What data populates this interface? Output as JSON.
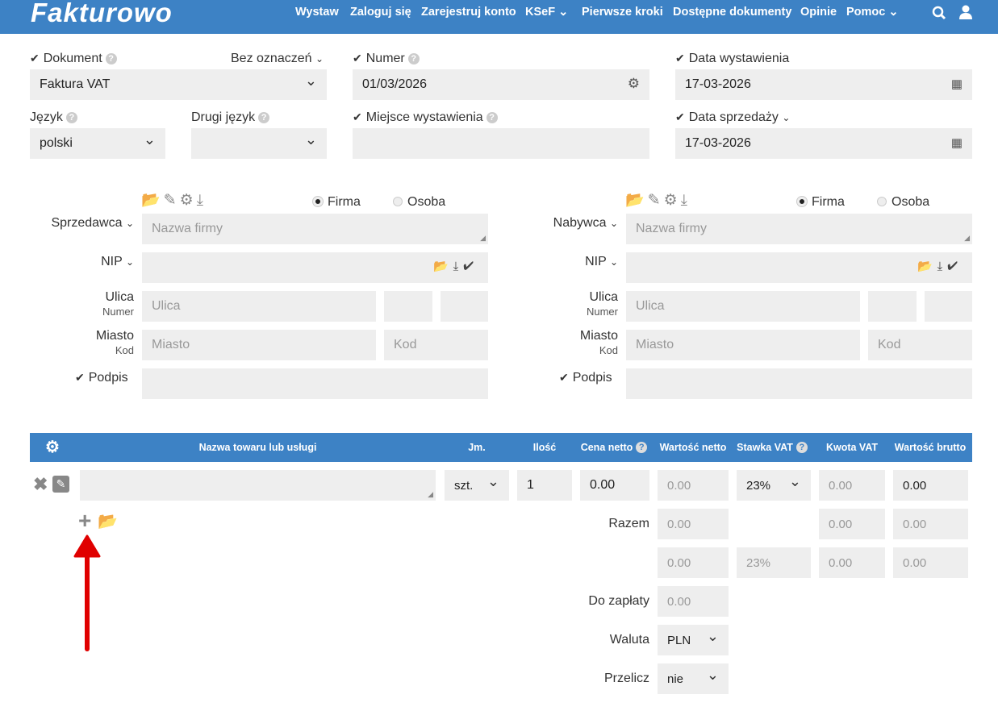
{
  "header": {
    "logo": "Fakturowo",
    "nav": [
      "Wystaw",
      "Zaloguj się",
      "Zarejestruj konto",
      "KSeF",
      "Pierwsze kroki",
      "Dostępne dokumenty",
      "Opinie",
      "Pomoc"
    ],
    "brand_color": "#3d82c5"
  },
  "doc": {
    "dokument_label": "Dokument",
    "oznaczenie": "Bez oznaczeń",
    "dokument_value": "Faktura VAT",
    "numer_label": "Numer",
    "numer_value": "01/03/2026",
    "data_wyst_label": "Data wystawienia",
    "data_wyst_value": "17-03-2026",
    "jezyk_label": "Język",
    "jezyk_value": "polski",
    "drugi_label": "Drugi język",
    "drugi_value": "",
    "miejsce_label": "Miejsce wystawienia",
    "miejsce_value": "",
    "data_sprz_label": "Data sprzedaży",
    "data_sprz_value": "17-03-2026"
  },
  "seller": {
    "title": "Sprzedawca",
    "firma": "Firma",
    "osoba": "Osoba",
    "name_ph": "Nazwa firmy",
    "nip": "NIP",
    "ulica": "Ulica",
    "numer": "Numer",
    "ulica_ph": "Ulica",
    "miasto": "Miasto",
    "kod": "Kod",
    "miasto_ph": "Miasto",
    "kod_ph": "Kod",
    "podpis": "Podpis"
  },
  "buyer": {
    "title": "Nabywca",
    "firma": "Firma",
    "osoba": "Osoba",
    "name_ph": "Nazwa firmy",
    "nip": "NIP",
    "ulica": "Ulica",
    "numer": "Numer",
    "ulica_ph": "Ulica",
    "miasto": "Miasto",
    "kod": "Kod",
    "miasto_ph": "Miasto",
    "kod_ph": "Kod",
    "podpis": "Podpis"
  },
  "table": {
    "headers": [
      "Nazwa towaru lub usługi",
      "Jm.",
      "Ilość",
      "Cena netto",
      "Wartość netto",
      "Stawka VAT",
      "Kwota VAT",
      "Wartość brutto"
    ],
    "row": {
      "name": "",
      "jm": "szt.",
      "ilosc": "1",
      "cena": "0.00",
      "wartosc_netto": "0.00",
      "stawka": "23%",
      "kwota": "0.00",
      "brutto": "0.00"
    }
  },
  "summary": {
    "razem_label": "Razem",
    "razem": [
      "0.00",
      "0.00",
      "0.00"
    ],
    "vat_row": [
      "0.00",
      "23%",
      "0.00",
      "0.00"
    ],
    "do_zaplaty_label": "Do zapłaty",
    "do_zaplaty": "0.00",
    "waluta_label": "Waluta",
    "waluta": "PLN",
    "przelicz_label": "Przelicz",
    "przelicz": "nie"
  },
  "annotation_color": "#e00000"
}
